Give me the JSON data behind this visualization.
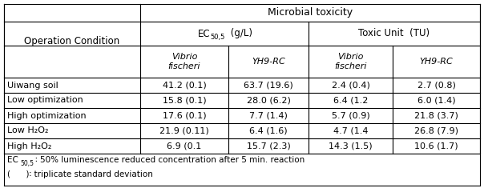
{
  "title_main": "Microbial toxicity",
  "col_header2": "Toxic Unit  (TU)",
  "row_header": "Operation Condition",
  "sub_headers": [
    "Vibrio\nfischeri",
    "YH9-RC",
    "Vibrio\nfischeri",
    "YH9-RC"
  ],
  "rows": [
    [
      "Uiwang soil",
      "41.2 (0.1)",
      "63.7 (19.6)",
      "2.4 (0.4)",
      "2.7 (0.8)"
    ],
    [
      "Low optimization",
      "15.8 (0.1)",
      "28.0 (6.2)",
      "6.4 (1.2",
      "6.0 (1.4)"
    ],
    [
      "High optimization",
      "17.6 (0.1)",
      "7.7 (1.4)",
      "5.7 (0.9)",
      "21.8 (3.7)"
    ],
    [
      "Low H₂O₂",
      "21.9 (0.11)",
      "6.4 (1.6)",
      "4.7 (1.4",
      "26.8 (7.9)"
    ],
    [
      "High H₂O₂",
      "6.9 (0.1",
      "15.7 (2.3)",
      "14.3 (1.5)",
      "10.6 (1.7)"
    ]
  ],
  "footnote1_rest": "∶ 50% luminescence reduced concentration after 5 min. reaction",
  "footnote2": "(      )∶ triplicate standard deviation",
  "bg_color": "#ffffff",
  "border_color": "#000000",
  "text_color": "#000000"
}
